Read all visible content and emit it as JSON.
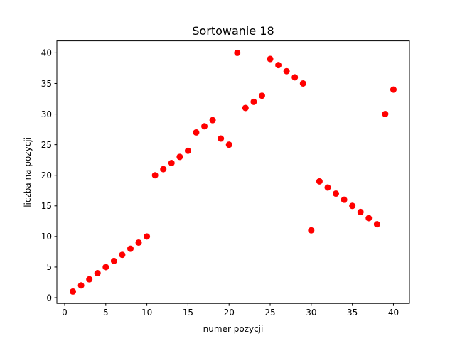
{
  "chart_data": {
    "type": "scatter",
    "title": "Sortowanie 18",
    "xlabel": "numer pozycji",
    "ylabel": "liczba na pozycji",
    "xlim": [
      -0.95,
      41.95
    ],
    "ylim": [
      -0.95,
      41.95
    ],
    "xticks": [
      0,
      5,
      10,
      15,
      20,
      25,
      30,
      35,
      40
    ],
    "yticks": [
      0,
      5,
      10,
      15,
      20,
      25,
      30,
      35,
      40
    ],
    "grid": false,
    "marker_color": "#ff0000",
    "x": [
      1,
      2,
      3,
      4,
      5,
      6,
      7,
      8,
      9,
      10,
      11,
      12,
      13,
      14,
      15,
      16,
      17,
      18,
      19,
      20,
      21,
      22,
      23,
      24,
      25,
      26,
      27,
      28,
      29,
      30,
      31,
      32,
      33,
      34,
      35,
      36,
      37,
      38,
      39,
      40
    ],
    "y": [
      1,
      2,
      3,
      4,
      5,
      6,
      7,
      8,
      9,
      10,
      20,
      21,
      22,
      23,
      24,
      27,
      28,
      29,
      26,
      25,
      40,
      31,
      32,
      33,
      39,
      38,
      37,
      36,
      35,
      11,
      19,
      18,
      17,
      16,
      15,
      14,
      13,
      12,
      30,
      34
    ]
  }
}
